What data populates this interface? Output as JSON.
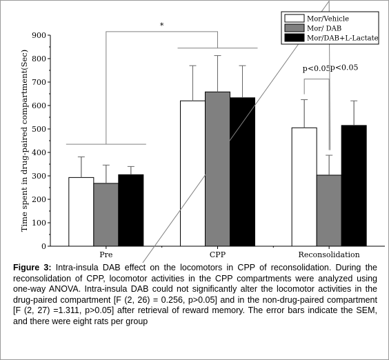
{
  "chart_data": {
    "type": "bar",
    "ylabel": "Time spent in drug-paired compartment(Sec)",
    "xlabel": "",
    "ylim": [
      0,
      900
    ],
    "yticks": [
      0,
      100,
      200,
      300,
      400,
      500,
      600,
      700,
      800,
      900
    ],
    "categories": [
      "Pre",
      "CPP",
      "Reconsolidation"
    ],
    "series": [
      {
        "name": "Mor/Vehicle",
        "color": "#ffffff",
        "values": [
          293,
          620,
          505
        ],
        "errors": [
          88,
          150,
          120
        ]
      },
      {
        "name": "Mor/ DAB",
        "color": "#808080",
        "values": [
          268,
          658,
          303
        ],
        "errors": [
          78,
          155,
          85
        ]
      },
      {
        "name": "Mor/DAB+L-Lactate",
        "color": "#000000",
        "values": [
          305,
          633,
          515
        ],
        "errors": [
          35,
          137,
          105
        ]
      }
    ],
    "legend_position": "top-right",
    "grid": false,
    "annotations": {
      "star": "*",
      "p1": "p<0.05",
      "p2": "p<0.05"
    }
  },
  "caption": {
    "label": "Figure 3:",
    "text": " Intra-insula DAB effect on the locomotors in CPP of reconsolidation. During the reconsolidation of CPP, locomotor activities in the CPP compartments were analyzed using one-way ANOVA. Intra-insula DAB could not significantly alter the locomotor activities in the drug-paired compartment [F (2, 26) = 0.256, p>0.05] and in the non-drug-paired compartment [F (2, 27) =1.311, p>0.05] after retrieval of reward memory. The error bars indicate the SEM, and there were eight rats per group"
  }
}
